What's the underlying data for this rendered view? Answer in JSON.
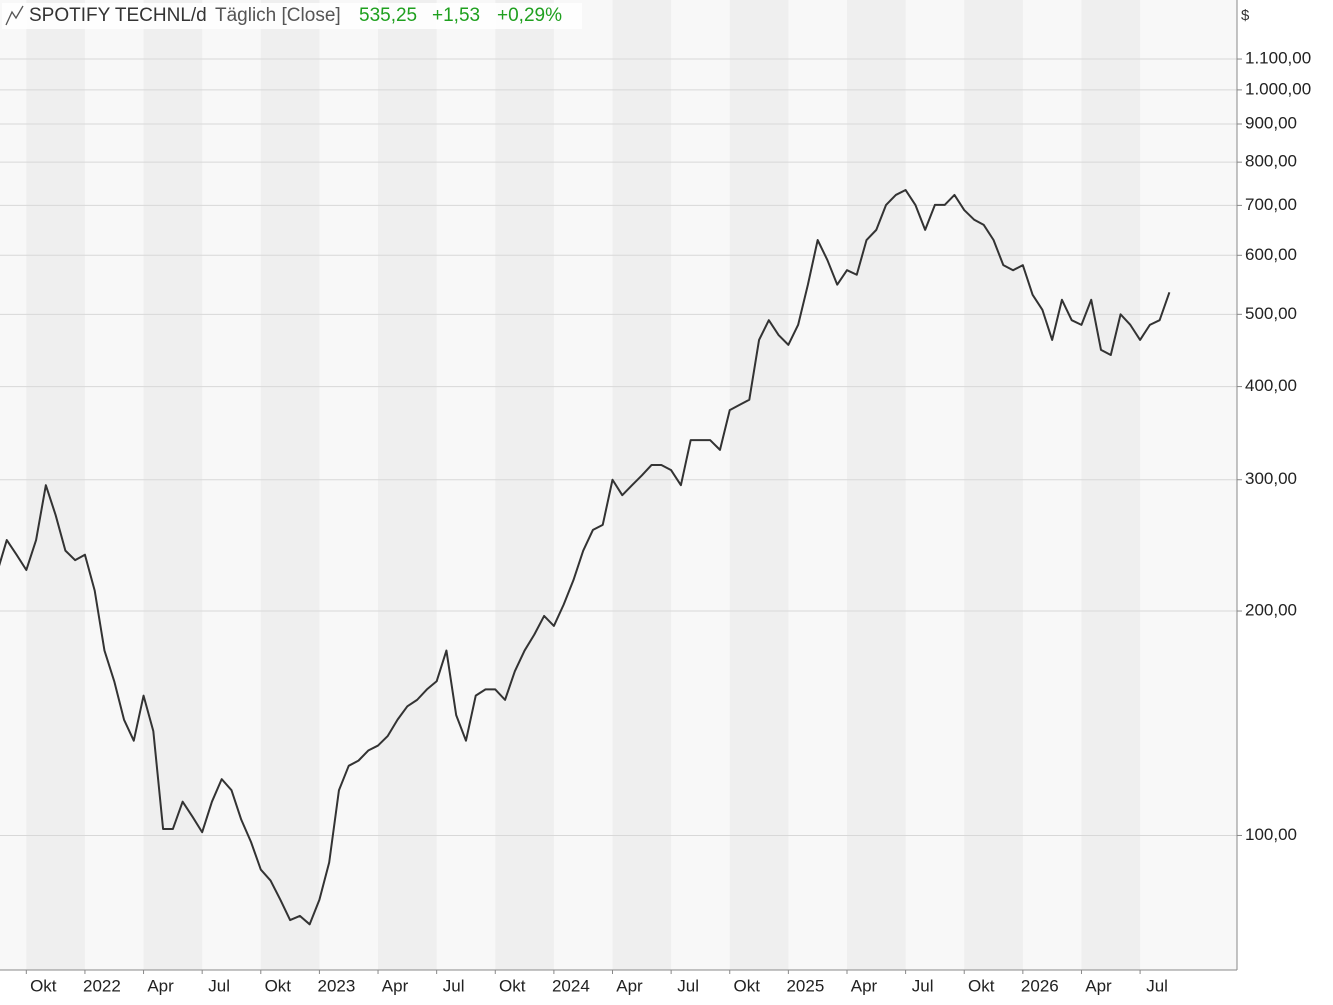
{
  "chart_data": {
    "type": "line",
    "title": "SPOTIFY TECHNL/d",
    "subtitle": "Täglich [Close]",
    "last_value": "535,25",
    "change": "+1,53",
    "change_percent": "+0,29%",
    "y_unit": "$",
    "log_scale": true,
    "grid": true,
    "color": "#333333",
    "categories": [
      null,
      null,
      null,
      "Okt",
      null,
      null,
      null,
      null,
      null,
      "2022",
      null,
      null,
      null,
      null,
      null,
      "Apr",
      null,
      null,
      null,
      null,
      null,
      "Jul",
      null,
      null,
      null,
      null,
      null,
      "Okt",
      null,
      null,
      null,
      null,
      null,
      "2023",
      null,
      null,
      null,
      null,
      null,
      "Apr",
      null,
      null,
      null,
      null,
      null,
      "Jul",
      null,
      null,
      null,
      null,
      null,
      "Okt",
      null,
      null,
      null,
      null,
      null,
      "2024",
      null,
      null,
      null,
      null,
      null,
      "Apr",
      null,
      null,
      null,
      null,
      null,
      "Jul",
      null,
      null,
      null,
      null,
      null,
      "Okt",
      null,
      null,
      null,
      null,
      null,
      "2025",
      null,
      null,
      null,
      null,
      null,
      "Apr",
      null,
      null,
      null,
      null,
      null,
      "Jul",
      null,
      null,
      null,
      null,
      null,
      "Okt",
      null,
      null,
      null,
      null,
      null,
      "2026",
      null,
      null,
      null,
      null,
      null,
      "Apr",
      null,
      null,
      null,
      null,
      null,
      "Jul",
      null,
      null,
      null
    ],
    "values": [
      225,
      249,
      238,
      227,
      249,
      295,
      269,
      241,
      234,
      238,
      213,
      177,
      161,
      143,
      134,
      154,
      138,
      102,
      102,
      111,
      106,
      101,
      111,
      119,
      115,
      105,
      98,
      90,
      87,
      82,
      77,
      78,
      76,
      82,
      92,
      115,
      124,
      126,
      130,
      132,
      136,
      143,
      149,
      152,
      157,
      161,
      177,
      145,
      134,
      154,
      157,
      157,
      152,
      166,
      177,
      186,
      197,
      191,
      204,
      220,
      241,
      257,
      261,
      300,
      286,
      295,
      304,
      314,
      314,
      309,
      295,
      339,
      339,
      339,
      329,
      372,
      378,
      384,
      462,
      491,
      469,
      455,
      484,
      548,
      629,
      591,
      548,
      573,
      565,
      629,
      649,
      701,
      723,
      734,
      701,
      649,
      701,
      701,
      723,
      690,
      670,
      659,
      629,
      582,
      573,
      582,
      531,
      507,
      462,
      523,
      491,
      484,
      523,
      448,
      441,
      500,
      484,
      462,
      484,
      491,
      535.25
    ],
    "ylim": [
      66,
      1320
    ],
    "yticks": [
      {
        "value": 100,
        "label": "100,00"
      },
      {
        "value": 200,
        "label": "200,00"
      },
      {
        "value": 300,
        "label": "300,00"
      },
      {
        "value": 400,
        "label": "400,00"
      },
      {
        "value": 500,
        "label": "500,00"
      },
      {
        "value": 600,
        "label": "600,00"
      },
      {
        "value": 700,
        "label": "700,00"
      },
      {
        "value": 800,
        "label": "800,00"
      },
      {
        "value": 900,
        "label": "900,00"
      },
      {
        "value": 1000,
        "label": "1.000,00"
      },
      {
        "value": 1100,
        "label": "1.100,00"
      }
    ]
  }
}
